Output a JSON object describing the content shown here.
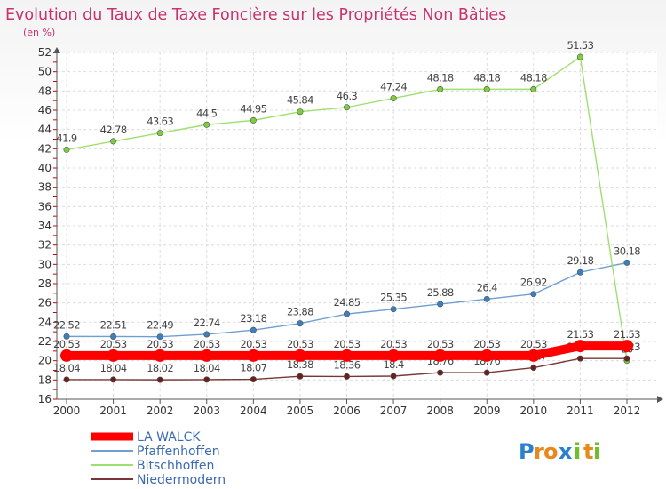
{
  "chart_data": {
    "type": "line",
    "title": "Evolution du Taux de Taxe Foncière sur les Propriétés Non Bâties",
    "subtitle": "(en %)",
    "x": [
      "2000",
      "2001",
      "2002",
      "2003",
      "2004",
      "2005",
      "2006",
      "2007",
      "2008",
      "2009",
      "2010",
      "2011",
      "2012"
    ],
    "ylim": [
      16,
      52
    ],
    "yticks": [
      16,
      18,
      20,
      22,
      24,
      26,
      28,
      30,
      32,
      34,
      36,
      38,
      40,
      42,
      44,
      46,
      48,
      50,
      52
    ],
    "grid": true,
    "legend_position": "bottom-left",
    "series": [
      {
        "name": "LA WALCK",
        "color": "#ff0000",
        "point_color": "#ff0000",
        "values": [
          20.53,
          20.53,
          20.53,
          20.53,
          20.53,
          20.53,
          20.53,
          20.53,
          20.53,
          20.53,
          20.53,
          21.53,
          21.53
        ],
        "labels": [
          "20.53",
          "20.53",
          "20.53",
          "20.53",
          "20.53",
          "20.53",
          "20.53",
          "20.53",
          "20.53",
          "20.53",
          "20.53",
          "21.53",
          "21.53"
        ]
      },
      {
        "name": "Pfaffenhoffen",
        "color": "#6f9fd0",
        "point_color": "#3c7fc0",
        "values": [
          22.52,
          22.51,
          22.49,
          22.74,
          23.18,
          23.88,
          24.85,
          25.35,
          25.88,
          26.4,
          26.92,
          29.18,
          30.18
        ],
        "labels": [
          "22.52",
          "22.51",
          "22.49",
          "22.74",
          "23.18",
          "23.88",
          "24.85",
          "25.35",
          "25.88",
          "26.4",
          "26.92",
          "29.18",
          "30.18"
        ]
      },
      {
        "name": "Bitschhoffen",
        "color": "#9fdf6f",
        "point_color": "#7ccf3c",
        "values": [
          41.9,
          42.78,
          43.63,
          44.5,
          44.95,
          45.84,
          46.3,
          47.24,
          48.18,
          48.18,
          48.18,
          51.53,
          20
        ],
        "labels": [
          "41.9",
          "42.78",
          "43.63",
          "44.5",
          "44.95",
          "45.84",
          "46.3",
          "47.24",
          "48.18",
          "48.18",
          "48.18",
          "51.53",
          "20"
        ]
      },
      {
        "name": "Niedermodern",
        "color": "#7a3636",
        "point_color": "#6a1f1f",
        "values": [
          18.04,
          18.04,
          18.02,
          18.04,
          18.07,
          18.38,
          18.36,
          18.4,
          18.76,
          18.76,
          19.27,
          20.23,
          20.23
        ],
        "labels": [
          "18.04",
          "18.04",
          "18.02",
          "18.04",
          "18.07",
          "18.38",
          "18.36",
          "18.4",
          "18.76",
          "18.76",
          "19.27",
          "20.23",
          "20.23"
        ]
      }
    ]
  },
  "logo": {
    "letters": [
      "P",
      "r",
      "o",
      "x",
      "i",
      "t",
      "i"
    ],
    "colors": [
      "#2a7fd0",
      "#e8891e",
      "#e8891e",
      "#2a7fd0",
      "#6fbf2a",
      "#e8891e",
      "#6fbf2a"
    ]
  }
}
